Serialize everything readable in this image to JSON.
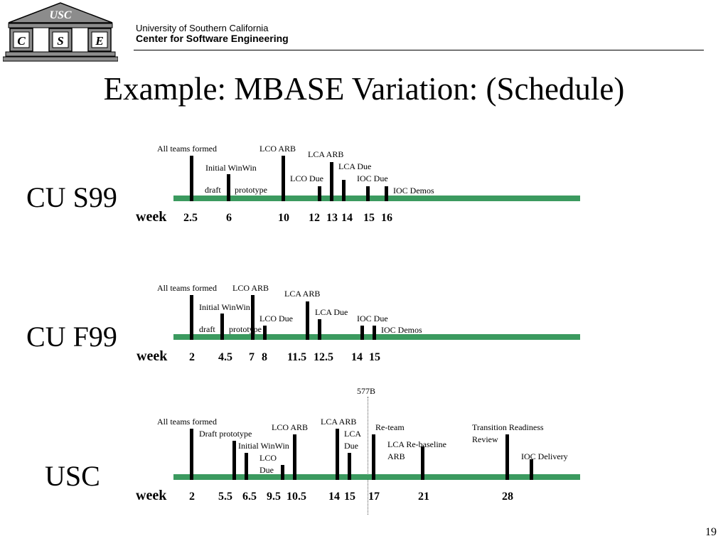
{
  "header": {
    "logo_text": "USC",
    "logo_letters": [
      "C",
      "S",
      "E"
    ],
    "university": "University of Southern California",
    "center": "Center for Software  Engineering"
  },
  "title": "Example: MBASE Variation: (Schedule)",
  "week_word": "week",
  "divider_label": "577B",
  "page_number": "19",
  "colors": {
    "timeline": "#3b9a5f",
    "ticks": "#000000",
    "logo_fill": "#8c8c8c"
  },
  "timelines": [
    {
      "label": "CU S99",
      "annotations": [
        "All teams formed",
        "Initial WinWin",
        "draft",
        "prototype",
        "LCO ARB",
        "LCO Due",
        "LCA ARB",
        "LCA Due",
        "IOC Due",
        "IOC Demos"
      ],
      "weeks": [
        "2.5",
        "6",
        "10",
        "12",
        "13",
        "14",
        "15",
        "16"
      ]
    },
    {
      "label": "CU F99",
      "annotations": [
        "All teams formed",
        "LCO ARB",
        "Initial WinWin",
        "draft",
        "prototype",
        "LCO Due",
        "LCA ARB",
        "LCA Due",
        "IOC Due",
        "IOC Demos"
      ],
      "weeks": [
        "2",
        "4.5",
        "7",
        "8",
        "11.5",
        "12.5",
        "14",
        "15"
      ]
    },
    {
      "label": "USC",
      "annotations": [
        "All teams formed",
        "Draft prototype",
        "Initial WinWin",
        "LCO",
        "Due",
        "LCO ARB",
        "LCA ARB",
        "LCA",
        "Due",
        "Re-team",
        "LCA Re-baseline",
        "ARB",
        "Transition Readiness",
        "Review",
        "IOC Delivery"
      ],
      "weeks": [
        "2",
        "5.5",
        "6.5",
        "9.5",
        "10.5",
        "14",
        "15",
        "17",
        "21",
        "28"
      ]
    }
  ]
}
